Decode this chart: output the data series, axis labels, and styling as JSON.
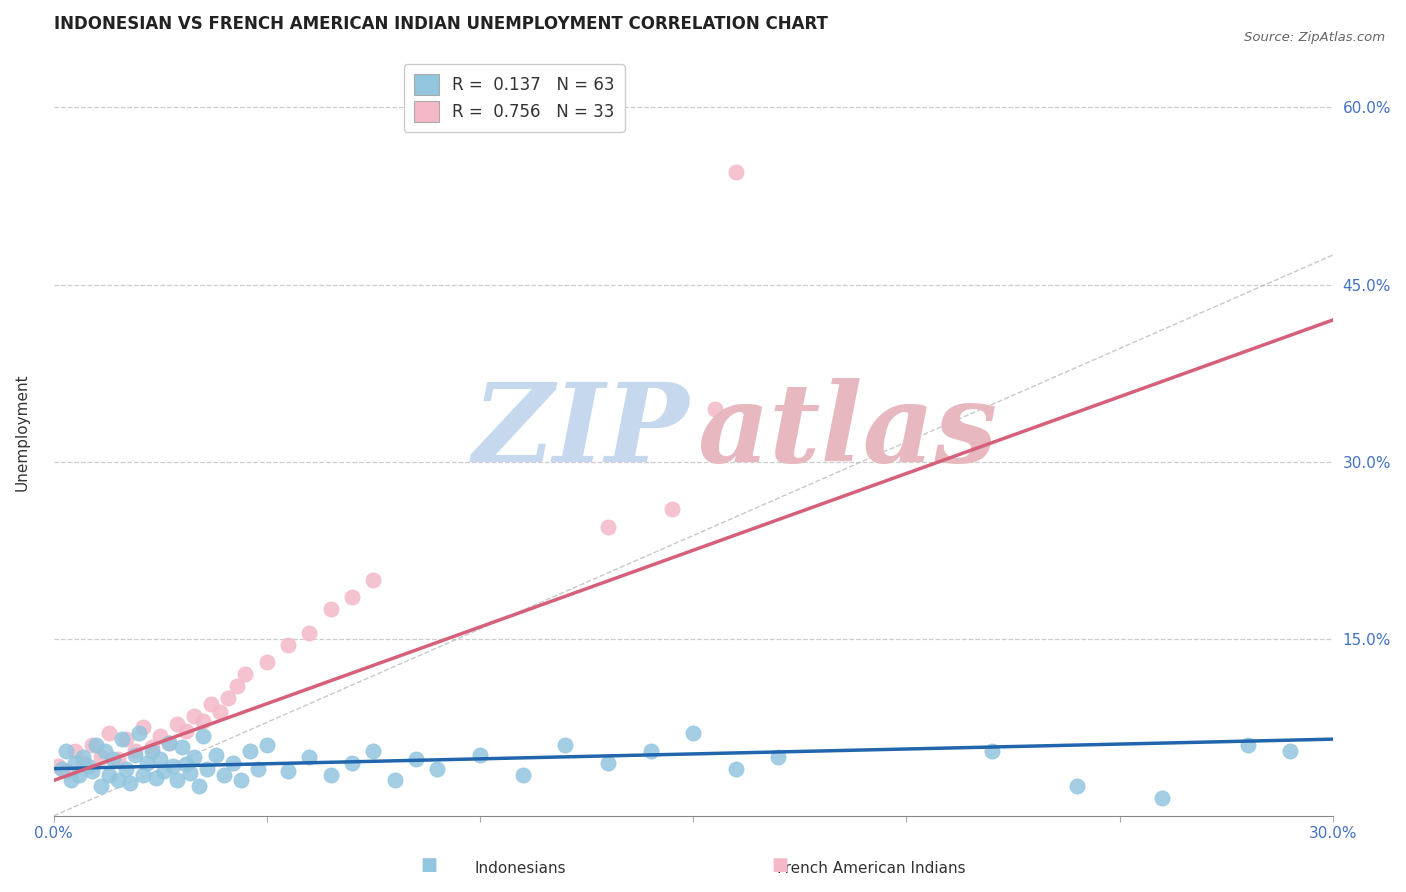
{
  "title": "INDONESIAN VS FRENCH AMERICAN INDIAN UNEMPLOYMENT CORRELATION CHART",
  "source_text": "Source: ZipAtlas.com",
  "xlabel_label": "Indonesians",
  "xlabel2_label": "French American Indians",
  "ylabel": "Unemployment",
  "xlim": [
    0.0,
    0.3
  ],
  "ylim": [
    0.0,
    0.65
  ],
  "xticks": [
    0.0,
    0.05,
    0.1,
    0.15,
    0.2,
    0.25,
    0.3
  ],
  "yticks": [
    0.0,
    0.15,
    0.3,
    0.45,
    0.6
  ],
  "ytick_labels": [
    "",
    "15.0%",
    "30.0%",
    "45.0%",
    "60.0%"
  ],
  "xtick_labels": [
    "0.0%",
    "",
    "",
    "",
    "",
    "",
    "30.0%"
  ],
  "blue_color": "#92c5de",
  "pink_color": "#f4b8c8",
  "blue_line_color": "#2166ac",
  "pink_line_color": "#d6607a",
  "axis_label_color": "#4472c4",
  "watermark_color_ZIP": "#c5d8ed",
  "watermark_color_atlas": "#e8b8c0",
  "legend_R1_val": "0.137",
  "legend_N1_val": "63",
  "legend_R2_val": "0.756",
  "legend_N2_val": "33",
  "blue_scatter_x": [
    0.002,
    0.003,
    0.004,
    0.005,
    0.006,
    0.007,
    0.008,
    0.009,
    0.01,
    0.011,
    0.012,
    0.013,
    0.014,
    0.015,
    0.016,
    0.017,
    0.018,
    0.019,
    0.02,
    0.021,
    0.022,
    0.023,
    0.024,
    0.025,
    0.026,
    0.027,
    0.028,
    0.029,
    0.03,
    0.031,
    0.032,
    0.033,
    0.034,
    0.035,
    0.036,
    0.038,
    0.04,
    0.042,
    0.044,
    0.046,
    0.048,
    0.05,
    0.055,
    0.06,
    0.065,
    0.07,
    0.075,
    0.08,
    0.085,
    0.09,
    0.1,
    0.11,
    0.12,
    0.13,
    0.14,
    0.15,
    0.16,
    0.17,
    0.22,
    0.24,
    0.26,
    0.28,
    0.29
  ],
  "blue_scatter_y": [
    0.04,
    0.055,
    0.03,
    0.045,
    0.035,
    0.05,
    0.042,
    0.038,
    0.06,
    0.025,
    0.055,
    0.035,
    0.048,
    0.03,
    0.065,
    0.04,
    0.028,
    0.052,
    0.07,
    0.035,
    0.045,
    0.055,
    0.032,
    0.048,
    0.038,
    0.062,
    0.042,
    0.03,
    0.058,
    0.044,
    0.036,
    0.05,
    0.025,
    0.068,
    0.04,
    0.052,
    0.035,
    0.045,
    0.03,
    0.055,
    0.04,
    0.06,
    0.038,
    0.05,
    0.035,
    0.045,
    0.055,
    0.03,
    0.048,
    0.04,
    0.052,
    0.035,
    0.06,
    0.045,
    0.055,
    0.07,
    0.04,
    0.05,
    0.055,
    0.025,
    0.015,
    0.06,
    0.055
  ],
  "pink_scatter_x": [
    0.001,
    0.003,
    0.005,
    0.007,
    0.009,
    0.011,
    0.013,
    0.015,
    0.017,
    0.019,
    0.021,
    0.023,
    0.025,
    0.027,
    0.029,
    0.031,
    0.033,
    0.035,
    0.037,
    0.039,
    0.041,
    0.043,
    0.045,
    0.05,
    0.055,
    0.06,
    0.065,
    0.07,
    0.075,
    0.13,
    0.145,
    0.155,
    0.16
  ],
  "pink_scatter_y": [
    0.042,
    0.038,
    0.055,
    0.045,
    0.06,
    0.05,
    0.07,
    0.048,
    0.065,
    0.055,
    0.075,
    0.058,
    0.068,
    0.062,
    0.078,
    0.072,
    0.085,
    0.08,
    0.095,
    0.088,
    0.1,
    0.11,
    0.12,
    0.13,
    0.145,
    0.155,
    0.175,
    0.185,
    0.2,
    0.245,
    0.26,
    0.345,
    0.545
  ],
  "blue_trend_x": [
    0.0,
    0.3
  ],
  "blue_trend_y": [
    0.04,
    0.065
  ],
  "pink_trend_x": [
    0.0,
    0.3
  ],
  "pink_trend_y": [
    0.03,
    0.42
  ],
  "diag_line_x": [
    0.0,
    0.3
  ],
  "diag_line_y": [
    0.0,
    0.475
  ],
  "background_color": "#ffffff",
  "grid_color": "#cccccc"
}
